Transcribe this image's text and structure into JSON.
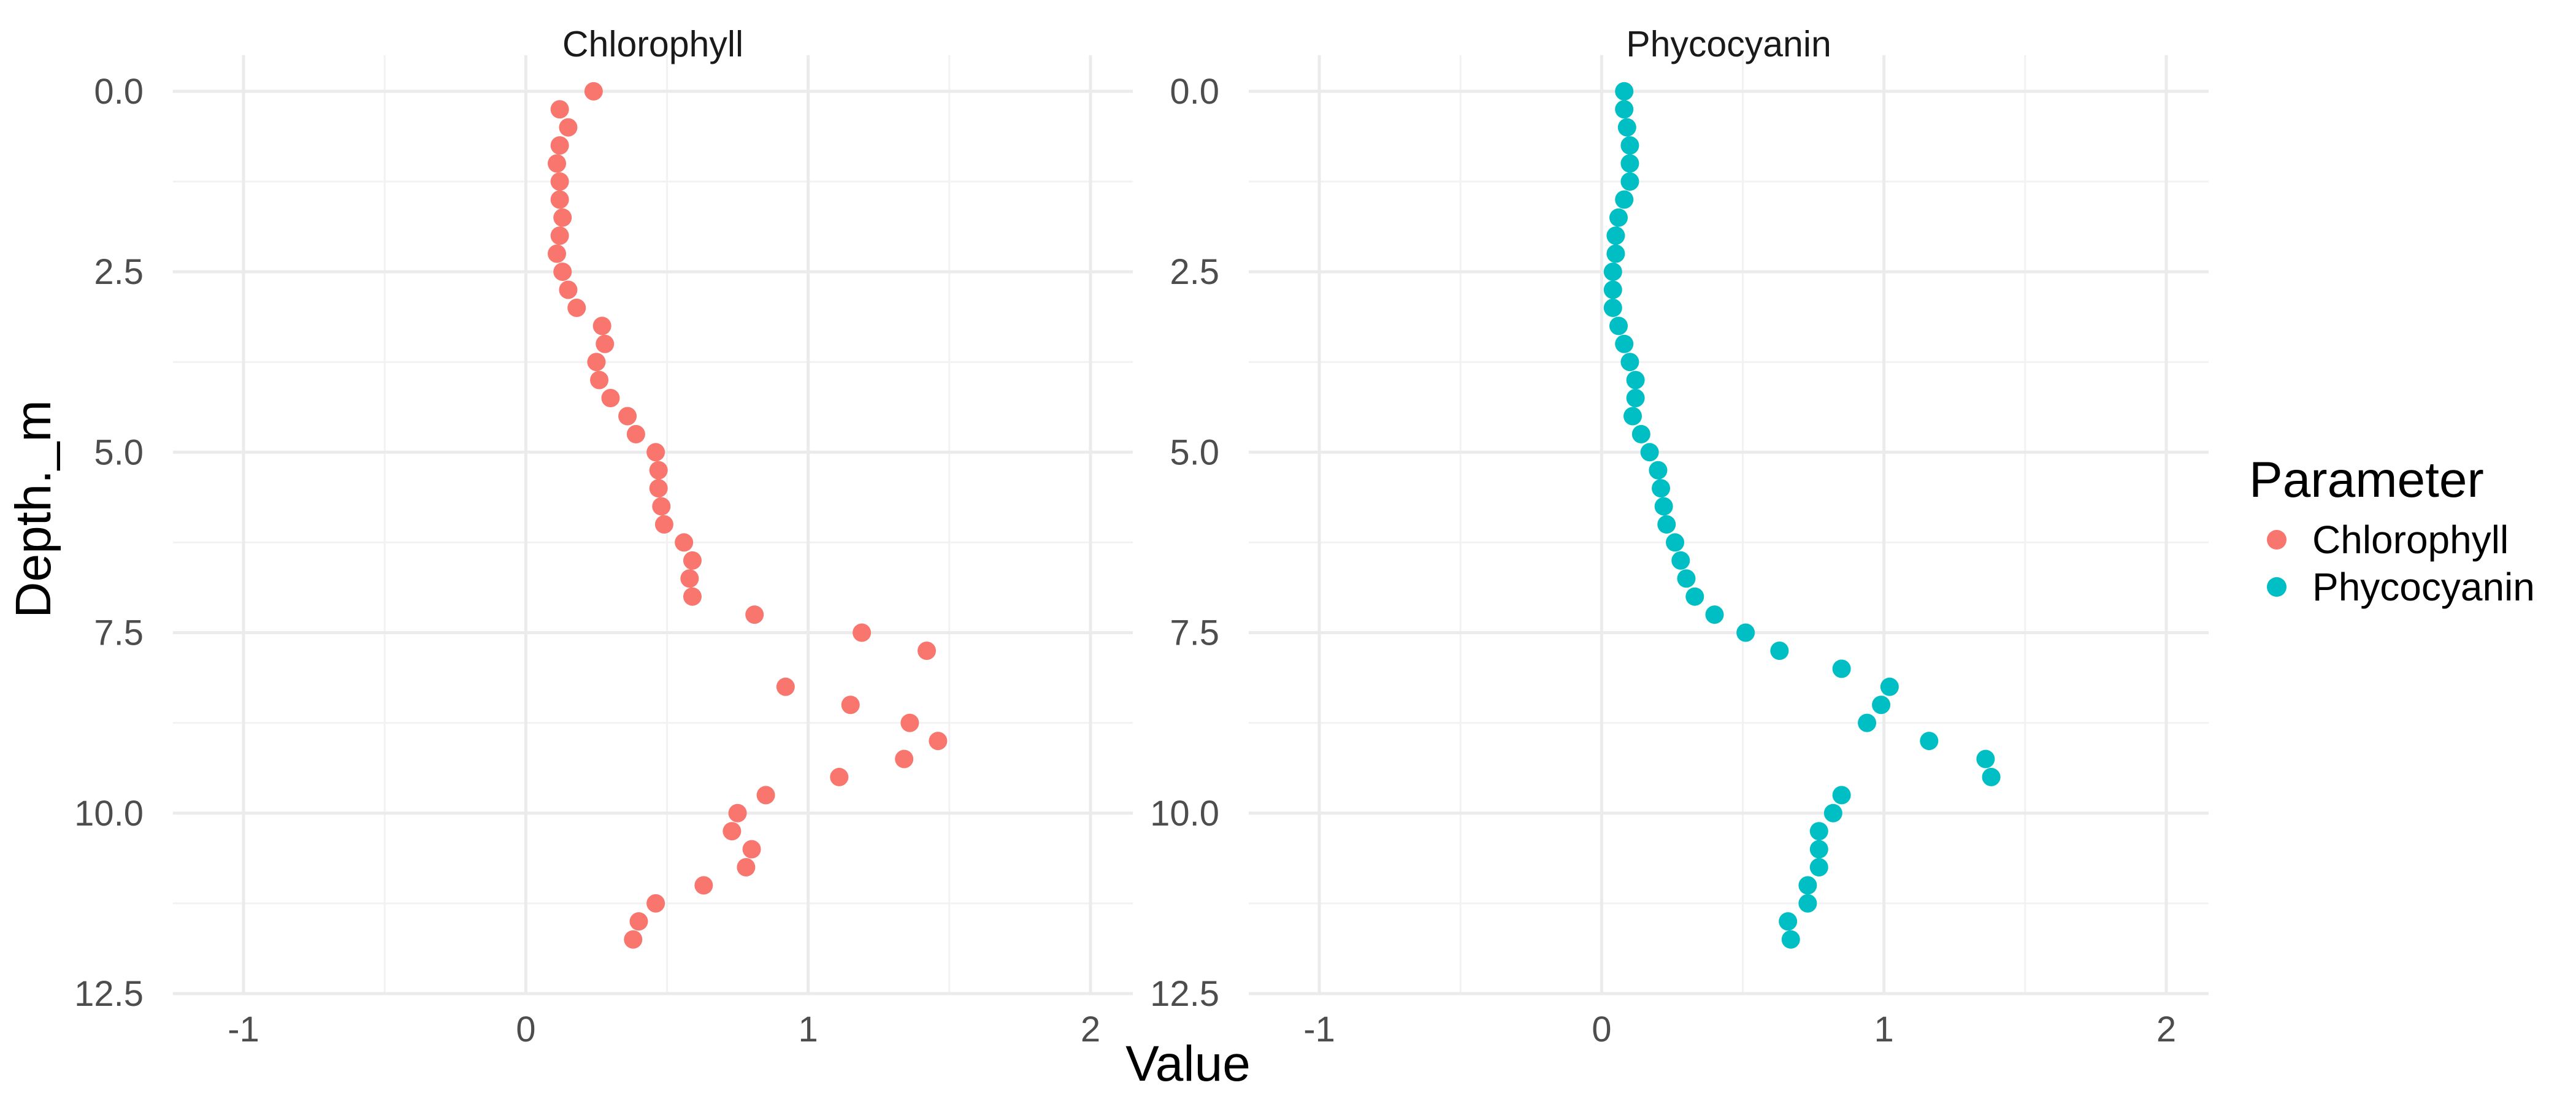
{
  "chart_data": {
    "type": "scatter",
    "xlabel": "Value",
    "ylabel": "Depth._m",
    "xlim": [
      -1.25,
      2.15
    ],
    "ylim": [
      12.5,
      -0.5
    ],
    "x_ticks": [
      -1,
      0,
      1,
      2
    ],
    "y_ticks": [
      0.0,
      2.5,
      5.0,
      7.5,
      10.0,
      12.5
    ],
    "x_tick_labels": [
      "-1",
      "0",
      "1",
      "2"
    ],
    "y_tick_labels": [
      "0.0",
      "2.5",
      "5.0",
      "7.5",
      "10.0",
      "12.5"
    ],
    "y_reversed": true,
    "grid": true,
    "legend": {
      "title": "Parameter",
      "position": "right",
      "entries": [
        {
          "label": "Chlorophyll",
          "color": "#F8766D"
        },
        {
          "label": "Phycocyanin",
          "color": "#00BFC4"
        }
      ]
    },
    "panels": [
      {
        "title": "Chlorophyll",
        "color": "#F8766D",
        "points": [
          [
            0.24,
            0.0
          ],
          [
            0.12,
            0.25
          ],
          [
            0.15,
            0.5
          ],
          [
            0.12,
            0.75
          ],
          [
            0.11,
            1.0
          ],
          [
            0.12,
            1.25
          ],
          [
            0.12,
            1.5
          ],
          [
            0.13,
            1.75
          ],
          [
            0.12,
            2.0
          ],
          [
            0.11,
            2.25
          ],
          [
            0.13,
            2.5
          ],
          [
            0.15,
            2.75
          ],
          [
            0.18,
            3.0
          ],
          [
            0.27,
            3.25
          ],
          [
            0.28,
            3.5
          ],
          [
            0.25,
            3.75
          ],
          [
            0.26,
            4.0
          ],
          [
            0.3,
            4.25
          ],
          [
            0.36,
            4.5
          ],
          [
            0.39,
            4.75
          ],
          [
            0.46,
            5.0
          ],
          [
            0.47,
            5.25
          ],
          [
            0.47,
            5.5
          ],
          [
            0.48,
            5.75
          ],
          [
            0.49,
            6.0
          ],
          [
            0.56,
            6.25
          ],
          [
            0.59,
            6.5
          ],
          [
            0.58,
            6.75
          ],
          [
            0.59,
            7.0
          ],
          [
            0.81,
            7.25
          ],
          [
            1.19,
            7.5
          ],
          [
            1.42,
            7.75
          ],
          [
            0.92,
            8.25
          ],
          [
            1.15,
            8.5
          ],
          [
            1.36,
            8.75
          ],
          [
            1.46,
            9.0
          ],
          [
            1.34,
            9.25
          ],
          [
            1.11,
            9.5
          ],
          [
            0.85,
            9.75
          ],
          [
            0.75,
            10.0
          ],
          [
            0.73,
            10.25
          ],
          [
            0.8,
            10.5
          ],
          [
            0.78,
            10.75
          ],
          [
            0.63,
            11.0
          ],
          [
            0.46,
            11.25
          ],
          [
            0.4,
            11.5
          ],
          [
            0.38,
            11.75
          ]
        ]
      },
      {
        "title": "Phycocyanin",
        "color": "#00BFC4",
        "points": [
          [
            0.08,
            0.0
          ],
          [
            0.08,
            0.25
          ],
          [
            0.09,
            0.5
          ],
          [
            0.1,
            0.75
          ],
          [
            0.1,
            1.0
          ],
          [
            0.1,
            1.25
          ],
          [
            0.08,
            1.5
          ],
          [
            0.06,
            1.75
          ],
          [
            0.05,
            2.0
          ],
          [
            0.05,
            2.25
          ],
          [
            0.04,
            2.5
          ],
          [
            0.04,
            2.75
          ],
          [
            0.04,
            3.0
          ],
          [
            0.06,
            3.25
          ],
          [
            0.08,
            3.5
          ],
          [
            0.1,
            3.75
          ],
          [
            0.12,
            4.0
          ],
          [
            0.12,
            4.25
          ],
          [
            0.11,
            4.5
          ],
          [
            0.14,
            4.75
          ],
          [
            0.17,
            5.0
          ],
          [
            0.2,
            5.25
          ],
          [
            0.21,
            5.5
          ],
          [
            0.22,
            5.75
          ],
          [
            0.23,
            6.0
          ],
          [
            0.26,
            6.25
          ],
          [
            0.28,
            6.5
          ],
          [
            0.3,
            6.75
          ],
          [
            0.33,
            7.0
          ],
          [
            0.4,
            7.25
          ],
          [
            0.51,
            7.5
          ],
          [
            0.63,
            7.75
          ],
          [
            0.85,
            8.0
          ],
          [
            1.02,
            8.25
          ],
          [
            0.99,
            8.5
          ],
          [
            0.94,
            8.75
          ],
          [
            1.16,
            9.0
          ],
          [
            1.36,
            9.25
          ],
          [
            1.38,
            9.5
          ],
          [
            0.85,
            9.75
          ],
          [
            0.82,
            10.0
          ],
          [
            0.77,
            10.25
          ],
          [
            0.77,
            10.5
          ],
          [
            0.77,
            10.75
          ],
          [
            0.73,
            11.0
          ],
          [
            0.73,
            11.25
          ],
          [
            0.66,
            11.5
          ],
          [
            0.67,
            11.75
          ]
        ]
      }
    ]
  }
}
